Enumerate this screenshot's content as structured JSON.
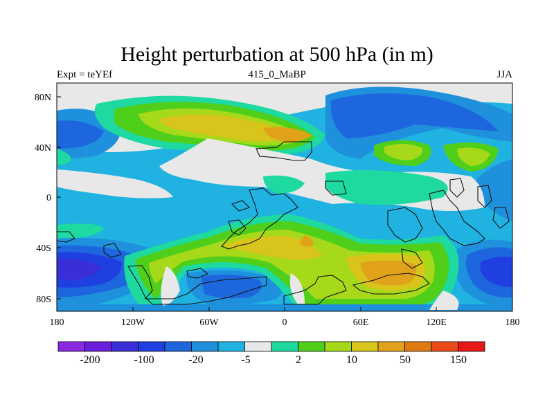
{
  "title": "Height perturbation at 500 hPa (in m)",
  "subtitle_left": "Expt = teYEf",
  "subtitle_center": "415_0_MaBP",
  "subtitle_right": "JJA",
  "y_ticks": [
    "80N",
    "40N",
    "0",
    "40S",
    "80S"
  ],
  "x_ticks": [
    "180",
    "120W",
    "60W",
    "0",
    "60E",
    "120E",
    "180"
  ],
  "colorbar": {
    "colors": [
      "#8a2be2",
      "#6a1fdc",
      "#3a2fd6",
      "#1f3fe0",
      "#1e66de",
      "#1e90dc",
      "#20b2e0",
      "#e8e8e8",
      "#1ed9a0",
      "#4fcf1a",
      "#a6d91a",
      "#d8c41a",
      "#e0a21a",
      "#e07a10",
      "#e84a18",
      "#e81818"
    ],
    "labels": [
      "-200",
      "-100",
      "-20",
      "-5",
      "2",
      "10",
      "50",
      "150"
    ]
  },
  "map_data": {
    "field": "500 hPa height perturbation",
    "units": "m",
    "season": "JJA",
    "lon_range": [
      -180,
      180
    ],
    "lat_range": [
      -90,
      90
    ]
  }
}
